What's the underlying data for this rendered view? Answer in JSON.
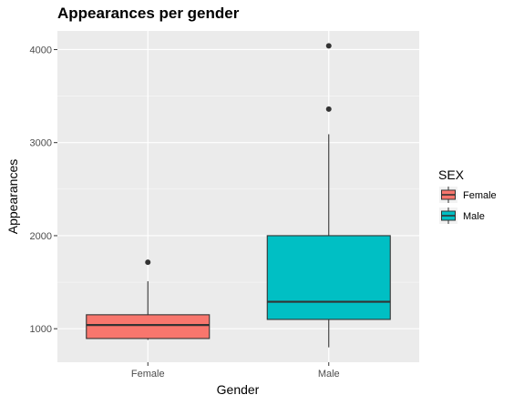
{
  "chart_data": {
    "type": "box",
    "title": "Appearances per gender",
    "xlabel": "Gender",
    "ylabel": "Appearances",
    "ylim": [
      640,
      4200
    ],
    "yticks": [
      1000,
      2000,
      3000,
      4000
    ],
    "categories": [
      "Female",
      "Male"
    ],
    "grid": true,
    "legend": {
      "title": "SEX",
      "position": "right",
      "entries": [
        {
          "label": "Female",
          "color": "#F8766D"
        },
        {
          "label": "Male",
          "color": "#00BFC4"
        }
      ]
    },
    "series": [
      {
        "category": "Female",
        "color": "#F8766D",
        "min": 880,
        "q1": 895,
        "median": 1040,
        "q3": 1150,
        "max": 1510,
        "outliers": [
          1715
        ]
      },
      {
        "category": "Male",
        "color": "#00BFC4",
        "min": 800,
        "q1": 1100,
        "median": 1290,
        "q3": 2000,
        "max": 3090,
        "outliers": [
          3360,
          4040
        ]
      }
    ]
  },
  "colors": {
    "panel_background": "#EBEBEB",
    "grid_major": "#FFFFFF",
    "box_outline": "#333333",
    "axis_text": "#4D4D4D",
    "title_text": "#000000"
  }
}
